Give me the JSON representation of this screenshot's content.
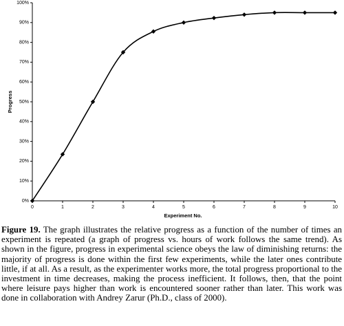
{
  "chart_data": {
    "type": "line",
    "x_label": "Experiment No.",
    "y_label": "Progress",
    "x": [
      0,
      1,
      2,
      3,
      4,
      5,
      6,
      7,
      8,
      9,
      10
    ],
    "series": [
      {
        "name": "Progress",
        "color": "#000000",
        "values": [
          0,
          23.5,
          50,
          75,
          85.5,
          90,
          92.3,
          94,
          95,
          95,
          95
        ]
      }
    ],
    "xlim": [
      0,
      10
    ],
    "xticks": [
      0,
      1,
      2,
      3,
      4,
      5,
      6,
      7,
      8,
      9,
      10
    ],
    "ylim": [
      0,
      100
    ],
    "yticks": [
      {
        "value": 0,
        "label": "0%"
      },
      {
        "value": 10,
        "label": "10%"
      },
      {
        "value": 20,
        "label": "20%"
      },
      {
        "value": 30,
        "label": "30%"
      },
      {
        "value": 40,
        "label": "40%"
      },
      {
        "value": 50,
        "label": "50%"
      },
      {
        "value": 60,
        "label": "60%"
      },
      {
        "value": 70,
        "label": "70%"
      },
      {
        "value": 80,
        "label": "80%"
      },
      {
        "value": 90,
        "label": "90%"
      },
      {
        "value": 100,
        "label": "100%"
      }
    ],
    "grid": false,
    "smooth": true
  },
  "caption": {
    "label": "Figure 19.",
    "text": "The graph illustrates the relative progress as a function of the number of times an experiment is repeated (a graph of progress vs. hours of work follows the same trend). As shown in the figure, progress in experimental science obeys the law of diminishing returns: the majority of progress is done within the first few experiments, while the later ones contribute little, if at all. As a result, as the experimenter works more, the total progress proportional to the investment in time decreases, making the process inefficient. It follows, then, that the point where leisure pays higher than work is encountered sooner rather than later. This work was done in collaboration with Andrey Zarur (Ph.D., class of 2000)."
  }
}
